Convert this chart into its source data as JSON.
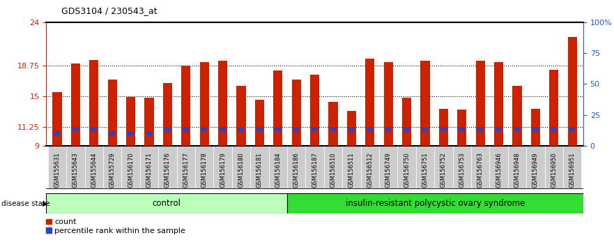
{
  "title": "GDS3104 / 230543_at",
  "samples": [
    "GSM155631",
    "GSM155643",
    "GSM155644",
    "GSM155729",
    "GSM156170",
    "GSM156171",
    "GSM156176",
    "GSM156177",
    "GSM156178",
    "GSM156179",
    "GSM156180",
    "GSM156181",
    "GSM156184",
    "GSM156186",
    "GSM156187",
    "GSM156510",
    "GSM156511",
    "GSM156512",
    "GSM156749",
    "GSM156750",
    "GSM156751",
    "GSM156752",
    "GSM156753",
    "GSM156763",
    "GSM156946",
    "GSM156948",
    "GSM156949",
    "GSM156950",
    "GSM156951"
  ],
  "red_values": [
    15.5,
    19.0,
    19.4,
    17.0,
    14.9,
    14.8,
    16.6,
    18.75,
    19.2,
    19.35,
    16.3,
    14.6,
    18.1,
    17.0,
    17.6,
    14.3,
    13.2,
    19.6,
    19.2,
    14.8,
    19.35,
    13.5,
    13.4,
    19.3,
    19.2,
    16.3,
    13.5,
    18.2,
    22.2
  ],
  "blue_center": [
    10.5,
    11.0,
    11.0,
    10.5,
    10.5,
    10.5,
    11.0,
    11.0,
    11.0,
    11.0,
    11.0,
    11.0,
    11.0,
    11.0,
    11.0,
    11.0,
    11.0,
    11.0,
    11.0,
    11.0,
    11.0,
    11.0,
    11.0,
    11.0,
    11.0,
    11.0,
    11.0,
    11.0,
    11.0
  ],
  "control_count": 13,
  "y_min": 9,
  "y_max": 24,
  "y_ticks": [
    9,
    11.25,
    15,
    18.75,
    24
  ],
  "y_tick_labels": [
    "9",
    "11.25",
    "15",
    "18.75",
    "24"
  ],
  "right_y_ticks_pct": [
    0,
    25,
    50,
    75,
    100
  ],
  "right_y_tick_labels": [
    "0",
    "25",
    "50",
    "75",
    "100%"
  ],
  "bar_color_red": "#cc2200",
  "bar_color_blue": "#2244cc",
  "control_bg": "#bbffbb",
  "disease_bg": "#33dd33",
  "label_color_left": "#cc2200",
  "label_color_right": "#2255cc",
  "bar_width": 0.5,
  "blue_bar_height": 0.5,
  "group1_label": "control",
  "group2_label": "insulin-resistant polycystic ovary syndrome",
  "disease_state_label": "disease state",
  "legend_red": "count",
  "legend_blue": "percentile rank within the sample",
  "xtick_bg": "#cccccc"
}
